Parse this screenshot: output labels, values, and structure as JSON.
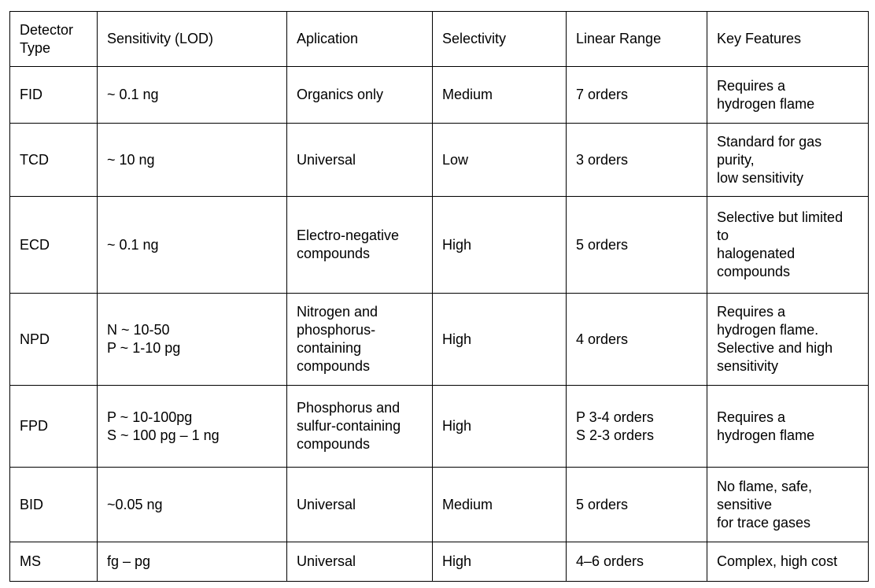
{
  "table": {
    "header": [
      "Detector Type",
      "Sensitivity (LOD)",
      "Aplication",
      "Selectivity",
      "Linear Range",
      "Key Features"
    ],
    "rows": [
      [
        "FID",
        "~ 0.1 ng",
        "Organics only",
        "Medium",
        "7 orders",
        "Requires a\nhydrogen flame"
      ],
      [
        "TCD",
        "~ 10 ng",
        "Universal",
        "Low",
        "3 orders",
        "Standard for gas\npurity,\nlow sensitivity"
      ],
      [
        "ECD",
        "~ 0.1 ng",
        "Electro-negative\ncompounds",
        "High",
        "5 orders",
        "Selective but limited\nto\nhalogenated\ncompounds"
      ],
      [
        "NPD",
        "N ~ 10-50\nP ~ 1-10 pg",
        "Nitrogen and\nphosphorus-\ncontaining\ncompounds",
        "High",
        "4 orders",
        "Requires a\nhydrogen flame.\nSelective and high\nsensitivity"
      ],
      [
        "FPD",
        "P ~ 10-100pg\nS ~ 100 pg – 1 ng",
        "Phosphorus and\nsulfur-containing\ncompounds",
        "High",
        "P 3-4 orders\nS 2-3 orders",
        "Requires a\nhydrogen flame"
      ],
      [
        "BID",
        "~0.05 ng",
        "Universal",
        "Medium",
        "5 orders",
        "No flame, safe,\nsensitive\nfor trace gases"
      ],
      [
        "MS",
        " fg – pg",
        "Universal",
        "High",
        "4–6 orders",
        "Complex, high cost"
      ]
    ]
  }
}
